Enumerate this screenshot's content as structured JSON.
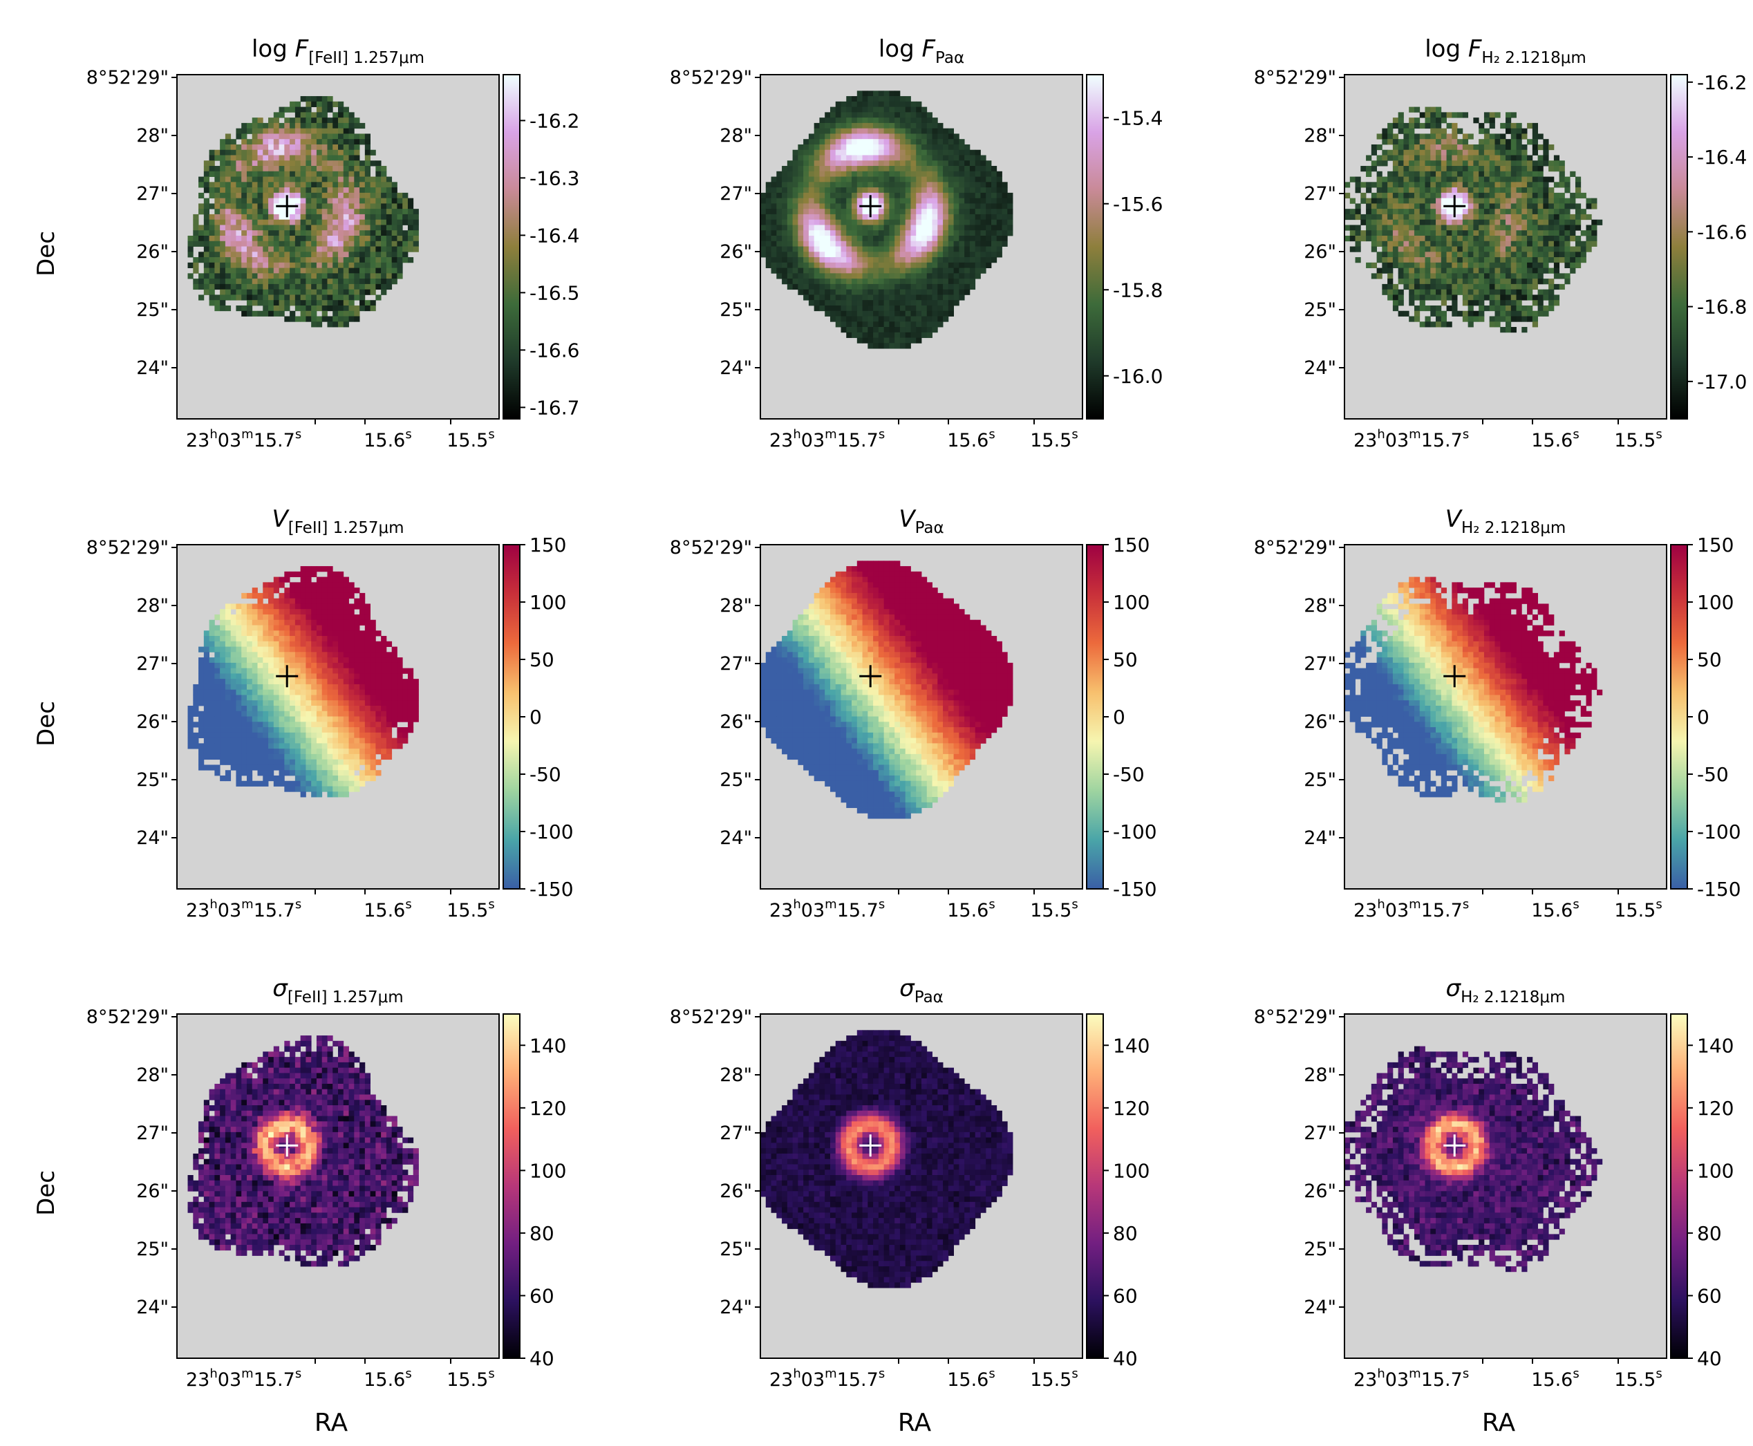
{
  "figure": {
    "axis_labels": {
      "ylabel": "Dec",
      "xlabel": "RA"
    },
    "dec_ticks": [
      "8°52'29\"",
      "28\"",
      "27\"",
      "26\"",
      "25\"",
      "24\""
    ],
    "ra_ticks": [
      "23h03m15.7s",
      "15.6s",
      "15.5s"
    ],
    "colormaps": {
      "flux": [
        "#000000",
        "#1f3a2a",
        "#3d6b3a",
        "#8e7f3c",
        "#c98a98",
        "#d9a3e6",
        "#f0ffff"
      ],
      "velocity": [
        "#3a5fa6",
        "#4aa5a8",
        "#9fd4a0",
        "#f6f5b0",
        "#f7c06e",
        "#ec6a3c",
        "#c8303a",
        "#9e0142"
      ],
      "sigma": [
        "#000004",
        "#2c115f",
        "#721f81",
        "#b73779",
        "#f1605d",
        "#feb078",
        "#fcfdbf"
      ],
      "nan": "#d3d3d3"
    }
  },
  "chart_data": [
    {
      "type": "heatmap",
      "row": 0,
      "col": 0,
      "quantity": "log F",
      "line": "[FeII] 1.257μm",
      "title_main": "log F",
      "title_sub": "[FeII] 1.257μm",
      "cmap": "flux",
      "clim": [
        -16.72,
        -16.12
      ],
      "cbar_ticks": [
        "-16.2",
        "-16.3",
        "-16.4",
        "-16.5",
        "-16.6",
        "-16.7"
      ],
      "cbar_values": [
        -16.2,
        -16.3,
        -16.4,
        -16.5,
        -16.6,
        -16.7
      ],
      "cross": "black"
    },
    {
      "type": "heatmap",
      "row": 0,
      "col": 1,
      "quantity": "log F",
      "line": "Paα",
      "title_main": "log F",
      "title_sub": "Paα",
      "cmap": "flux",
      "clim": [
        -16.1,
        -15.3
      ],
      "cbar_ticks": [
        "-15.4",
        "-15.6",
        "-15.8",
        "-16.0"
      ],
      "cbar_values": [
        -15.4,
        -15.6,
        -15.8,
        -16.0
      ],
      "cross": "black"
    },
    {
      "type": "heatmap",
      "row": 0,
      "col": 2,
      "quantity": "log F",
      "line": "H2 2.1218μm",
      "title_main": "log F",
      "title_sub": "H₂ 2.1218μm",
      "cmap": "flux",
      "clim": [
        -17.1,
        -16.18
      ],
      "cbar_ticks": [
        "-16.2",
        "-16.4",
        "-16.6",
        "-16.8",
        "-17.0"
      ],
      "cbar_values": [
        -16.2,
        -16.4,
        -16.6,
        -16.8,
        -17.0
      ],
      "cross": "black"
    },
    {
      "type": "heatmap",
      "row": 1,
      "col": 0,
      "quantity": "V",
      "line": "[FeII] 1.257μm",
      "title_main": "V",
      "title_sub": "[FeII] 1.257μm",
      "cmap": "velocity",
      "clim": [
        -150,
        150
      ],
      "cbar_ticks": [
        "150",
        "100",
        "50",
        "0",
        "-50",
        "-100",
        "-150"
      ],
      "cbar_values": [
        150,
        100,
        50,
        0,
        -50,
        -100,
        -150
      ],
      "cross": "black"
    },
    {
      "type": "heatmap",
      "row": 1,
      "col": 1,
      "quantity": "V",
      "line": "Paα",
      "title_main": "V",
      "title_sub": "Paα",
      "cmap": "velocity",
      "clim": [
        -150,
        150
      ],
      "cbar_ticks": [
        "150",
        "100",
        "50",
        "0",
        "-50",
        "-100",
        "-150"
      ],
      "cbar_values": [
        150,
        100,
        50,
        0,
        -50,
        -100,
        -150
      ],
      "cross": "black"
    },
    {
      "type": "heatmap",
      "row": 1,
      "col": 2,
      "quantity": "V",
      "line": "H2 2.1218μm",
      "title_main": "V",
      "title_sub": "H₂ 2.1218μm",
      "cmap": "velocity",
      "clim": [
        -150,
        150
      ],
      "cbar_ticks": [
        "150",
        "100",
        "50",
        "0",
        "-50",
        "-100",
        "-150"
      ],
      "cbar_values": [
        150,
        100,
        50,
        0,
        -50,
        -100,
        -150
      ],
      "cross": "black"
    },
    {
      "type": "heatmap",
      "row": 2,
      "col": 0,
      "quantity": "σ",
      "line": "[FeII] 1.257μm",
      "title_main": "σ",
      "title_sub": "[FeII] 1.257μm",
      "cmap": "sigma",
      "clim": [
        40,
        150
      ],
      "cbar_ticks": [
        "140",
        "120",
        "100",
        "80",
        "60",
        "40"
      ],
      "cbar_values": [
        140,
        120,
        100,
        80,
        60,
        40
      ],
      "cross": "white"
    },
    {
      "type": "heatmap",
      "row": 2,
      "col": 1,
      "quantity": "σ",
      "line": "Paα",
      "title_main": "σ",
      "title_sub": "Paα",
      "cmap": "sigma",
      "clim": [
        40,
        150
      ],
      "cbar_ticks": [
        "140",
        "120",
        "100",
        "80",
        "60",
        "40"
      ],
      "cbar_values": [
        140,
        120,
        100,
        80,
        60,
        40
      ],
      "cross": "white"
    },
    {
      "type": "heatmap",
      "row": 2,
      "col": 2,
      "quantity": "σ",
      "line": "H2 2.1218μm",
      "title_main": "σ",
      "title_sub": "H₂ 2.1218μm",
      "cmap": "sigma",
      "clim": [
        40,
        150
      ],
      "cbar_ticks": [
        "140",
        "120",
        "100",
        "80",
        "60",
        "40"
      ],
      "cbar_values": [
        140,
        120,
        100,
        80,
        60,
        40
      ],
      "cross": "white"
    }
  ]
}
